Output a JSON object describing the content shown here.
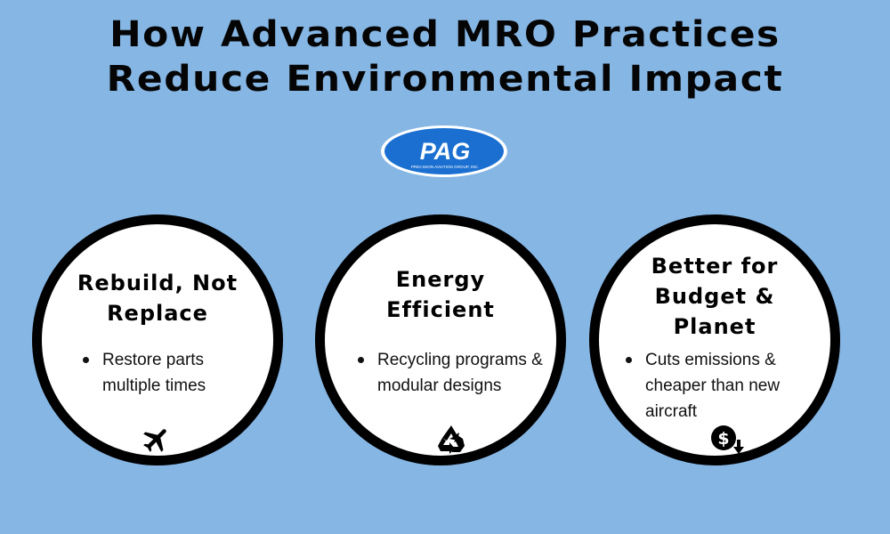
{
  "header": {
    "title_line1": "How Advanced MRO Practices",
    "title_line2": "Reduce Environmental Impact"
  },
  "logo": {
    "name": "PAG",
    "tagline": "PRECISION AVIATION GROUP, INC."
  },
  "colors": {
    "background": "#86b6e4",
    "circle_fill": "#ffffff",
    "circle_border": "#000000",
    "logo_blue": "#1a6fd1"
  },
  "cards": [
    {
      "title_lines": [
        "Rebuild, Not",
        "Replace"
      ],
      "bullet": [
        "Restore parts",
        "multiple times"
      ],
      "icon": "airplane-icon"
    },
    {
      "title_lines": [
        "Energy",
        "Efficient"
      ],
      "bullet": [
        "Recycling programs &",
        "modular designs"
      ],
      "icon": "recycle-icon"
    },
    {
      "title_lines": [
        "Better for",
        "Budget &",
        "Planet"
      ],
      "bullet": [
        "Cuts emissions &",
        "cheaper than new",
        "aircraft"
      ],
      "icon": "dollar-down-icon"
    }
  ]
}
